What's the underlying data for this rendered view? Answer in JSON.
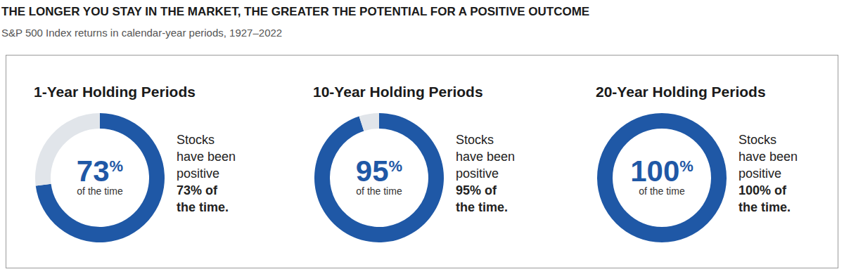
{
  "title": "THE LONGER YOU STAY IN THE MARKET, THE GREATER THE POTENTIAL FOR A POSITIVE OUTCOME",
  "subtitle": "S&P 500 Index returns in calendar-year periods, 1927–2022",
  "chart_data": [
    {
      "type": "pie",
      "title": "1-Year Holding Periods",
      "values": [
        73,
        27
      ],
      "colors": [
        "#1f58a6",
        "#e1e5ea"
      ],
      "data_labels": true,
      "value_labels": [
        "73%",
        null
      ],
      "caption": "of the time",
      "note": [
        "Stocks",
        "have been",
        "positive"
      ],
      "note_emphasis": [
        "73% of",
        "the time."
      ]
    },
    {
      "type": "pie",
      "title": "10-Year Holding Periods",
      "values": [
        95,
        5
      ],
      "colors": [
        "#1f58a6",
        "#e1e5ea"
      ],
      "data_labels": true,
      "value_labels": [
        "95%",
        null
      ],
      "caption": "of the time",
      "note": [
        "Stocks",
        "have been",
        "positive"
      ],
      "note_emphasis": [
        "95% of",
        "the time."
      ]
    },
    {
      "type": "pie",
      "title": "20-Year Holding Periods",
      "values": [
        100,
        0
      ],
      "colors": [
        "#1f58a6",
        "#e1e5ea"
      ],
      "data_labels": true,
      "value_labels": [
        "100%",
        null
      ],
      "caption": "of the time",
      "note": [
        "Stocks",
        "have been",
        "positive"
      ],
      "note_emphasis": [
        "100% of",
        "the time."
      ]
    }
  ]
}
